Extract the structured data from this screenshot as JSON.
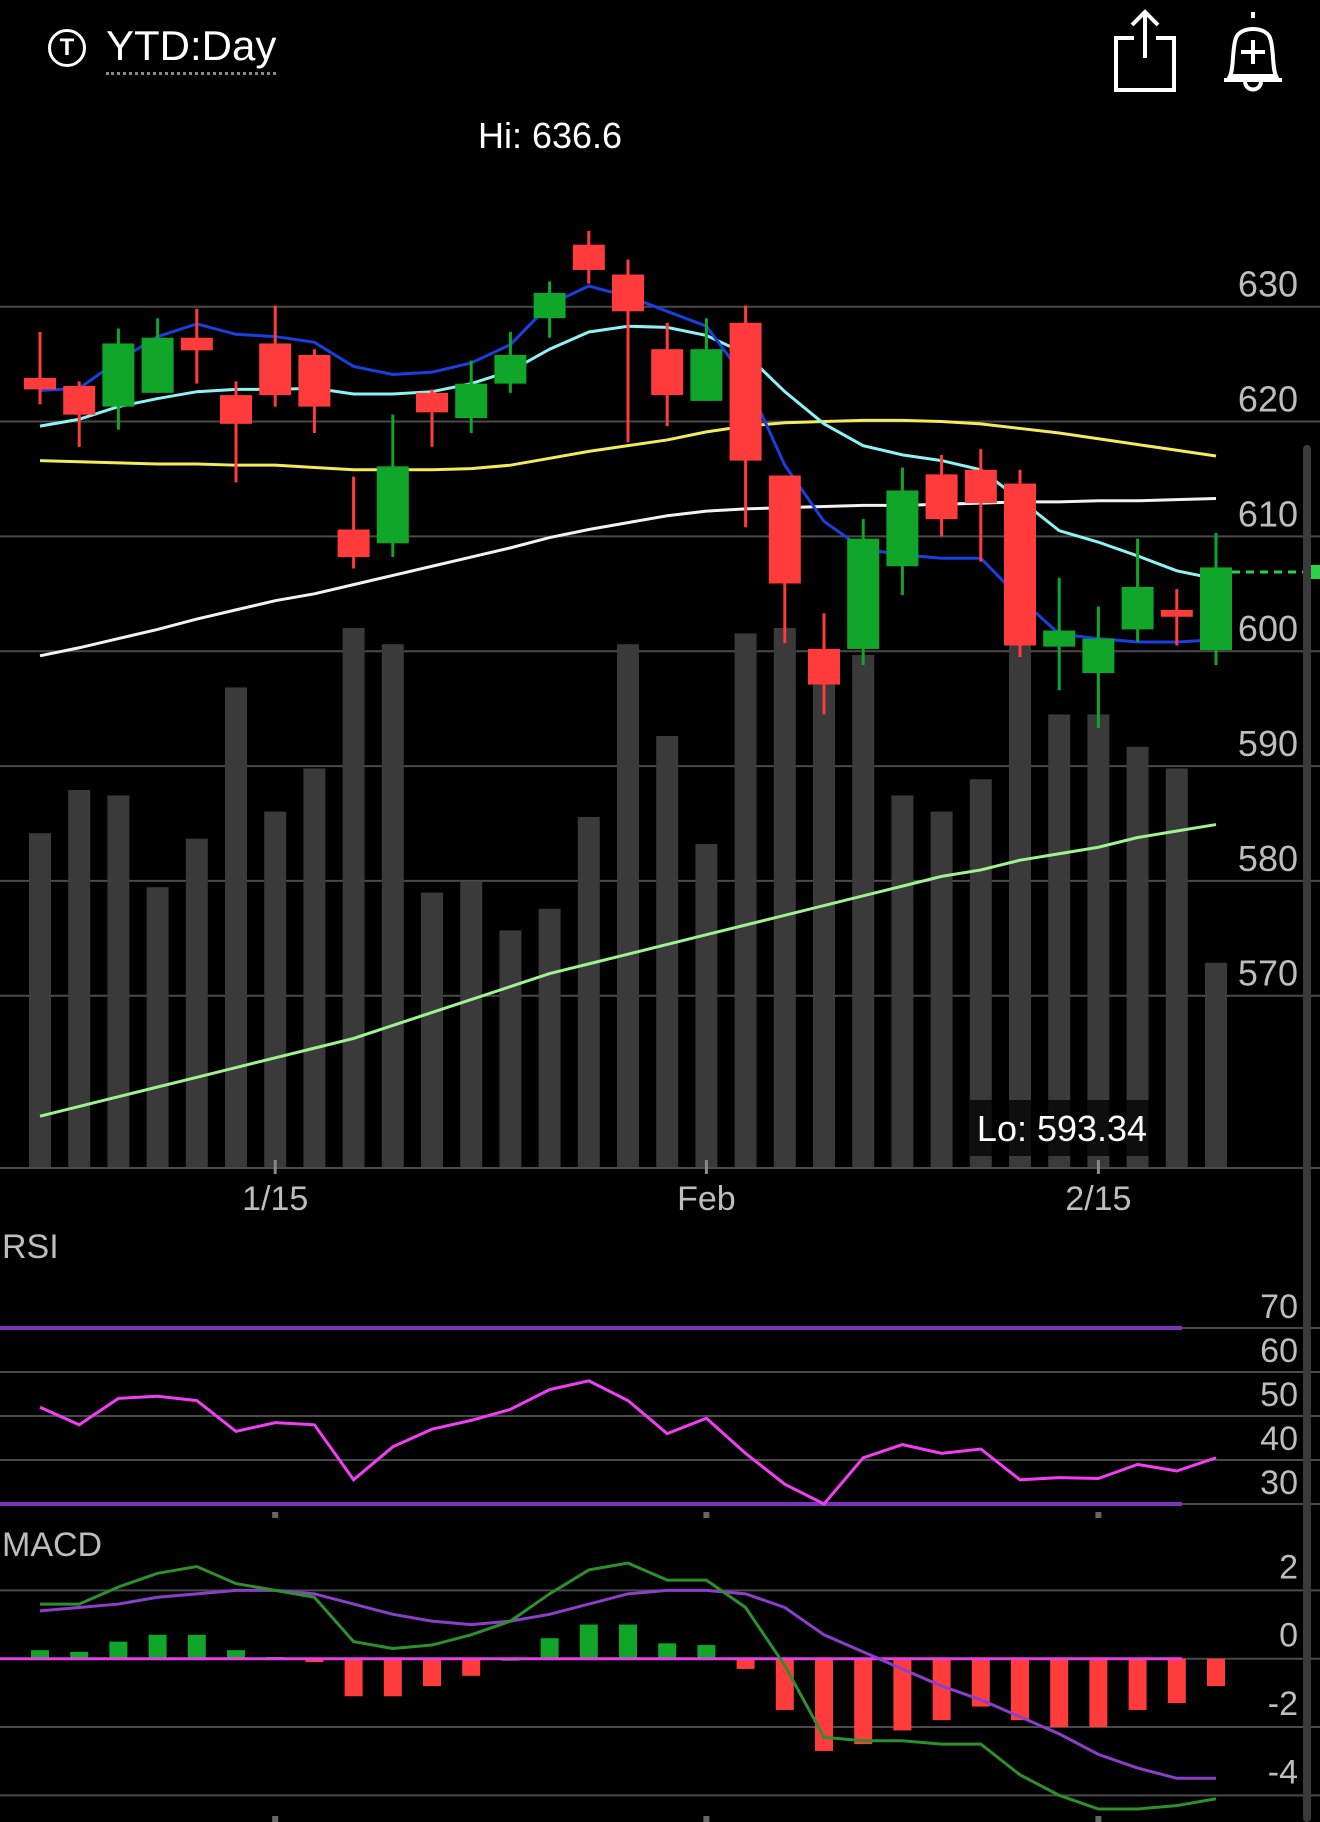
{
  "header": {
    "title": "YTD:Day",
    "ticker_icon": "T"
  },
  "icons": {
    "share": "share-icon",
    "alert": "add-alert-icon"
  },
  "chart_data": [
    {
      "type": "candlestick",
      "ylim": [
        555,
        648
      ],
      "yticks": [
        630,
        620,
        610,
        600,
        590,
        580,
        570
      ],
      "xticks": [
        {
          "label": "1/15",
          "index": 6
        },
        {
          "label": "Feb",
          "index": 17
        },
        {
          "label": "2/15",
          "index": 27
        }
      ],
      "hi_label": "Hi: 636.6",
      "lo_label": "Lo: 593.34",
      "last_price": 606.9,
      "candles": [
        {
          "o": 623.8,
          "h": 627.8,
          "l": 621.5,
          "c": 622.8
        },
        {
          "o": 623.1,
          "h": 623.5,
          "l": 617.8,
          "c": 620.6
        },
        {
          "o": 621.3,
          "h": 628.1,
          "l": 619.3,
          "c": 626.8
        },
        {
          "o": 622.5,
          "h": 629.0,
          "l": 622.5,
          "c": 627.3
        },
        {
          "o": 627.3,
          "h": 629.8,
          "l": 623.3,
          "c": 626.2
        },
        {
          "o": 622.3,
          "h": 623.5,
          "l": 614.7,
          "c": 619.8
        },
        {
          "o": 626.8,
          "h": 630.1,
          "l": 621.3,
          "c": 622.3
        },
        {
          "o": 625.8,
          "h": 626.3,
          "l": 619.0,
          "c": 621.3
        },
        {
          "o": 610.6,
          "h": 615.2,
          "l": 607.2,
          "c": 608.2
        },
        {
          "o": 609.4,
          "h": 620.6,
          "l": 608.2,
          "c": 616.1
        },
        {
          "o": 622.5,
          "h": 622.8,
          "l": 617.8,
          "c": 620.8
        },
        {
          "o": 620.3,
          "h": 625.3,
          "l": 619.0,
          "c": 623.3
        },
        {
          "o": 623.3,
          "h": 627.8,
          "l": 622.5,
          "c": 625.8
        },
        {
          "o": 629.0,
          "h": 632.2,
          "l": 627.3,
          "c": 631.2
        },
        {
          "o": 635.4,
          "h": 636.6,
          "l": 632.0,
          "c": 633.2
        },
        {
          "o": 632.8,
          "h": 634.1,
          "l": 618.2,
          "c": 629.6
        },
        {
          "o": 626.3,
          "h": 628.6,
          "l": 619.6,
          "c": 622.3
        },
        {
          "o": 621.8,
          "h": 629.0,
          "l": 621.8,
          "c": 626.3
        },
        {
          "o": 628.6,
          "h": 630.1,
          "l": 610.8,
          "c": 616.6
        },
        {
          "o": 615.3,
          "h": 615.3,
          "l": 600.7,
          "c": 605.9
        },
        {
          "o": 600.2,
          "h": 603.3,
          "l": 594.5,
          "c": 597.1
        },
        {
          "o": 600.2,
          "h": 611.5,
          "l": 598.8,
          "c": 609.8
        },
        {
          "o": 607.4,
          "h": 616.0,
          "l": 604.9,
          "c": 614.0
        },
        {
          "o": 615.4,
          "h": 617.1,
          "l": 610.0,
          "c": 611.5
        },
        {
          "o": 615.8,
          "h": 617.6,
          "l": 607.8,
          "c": 612.9
        },
        {
          "o": 614.6,
          "h": 615.8,
          "l": 599.5,
          "c": 600.5
        },
        {
          "o": 600.4,
          "h": 606.4,
          "l": 596.6,
          "c": 601.8
        },
        {
          "o": 598.1,
          "h": 603.9,
          "l": 593.3,
          "c": 601.1
        },
        {
          "o": 601.9,
          "h": 609.8,
          "l": 600.8,
          "c": 605.6
        },
        {
          "o": 603.6,
          "h": 605.4,
          "l": 600.5,
          "c": 603.0
        },
        {
          "o": 600.1,
          "h": 610.3,
          "l": 598.8,
          "c": 607.3
        }
      ],
      "volume": [
        0.62,
        0.7,
        0.69,
        0.52,
        0.61,
        0.89,
        0.66,
        0.74,
        1.0,
        0.97,
        0.51,
        0.53,
        0.44,
        0.48,
        0.65,
        0.97,
        0.8,
        0.6,
        0.99,
        1.0,
        0.91,
        0.95,
        0.69,
        0.66,
        0.72,
        0.99,
        0.84,
        0.84,
        0.78,
        0.74,
        0.38
      ],
      "ma_fast": [
        622.7,
        622.9,
        625.3,
        627.4,
        628.5,
        627.6,
        627.4,
        626.9,
        624.8,
        624.1,
        624.3,
        625.1,
        626.7,
        630.2,
        631.8,
        630.9,
        629.6,
        628.3,
        623.7,
        616.2,
        611.3,
        608.9,
        608.4,
        608.1,
        608.1,
        604.6,
        601.5,
        601.1,
        600.8,
        600.8,
        601.0
      ],
      "ma_mid": [
        619.6,
        620.2,
        621.3,
        622.0,
        622.6,
        622.8,
        622.8,
        622.9,
        622.4,
        622.4,
        622.6,
        623.3,
        624.4,
        626.3,
        627.8,
        628.3,
        628.2,
        627.5,
        625.9,
        622.6,
        619.8,
        617.9,
        617.1,
        616.6,
        615.8,
        613.2,
        610.5,
        609.5,
        608.3,
        607.0,
        606.3
      ],
      "ma_slow": [
        616.6,
        616.5,
        616.4,
        616.3,
        616.3,
        616.2,
        616.2,
        616.0,
        615.8,
        615.8,
        615.8,
        615.9,
        616.2,
        616.8,
        617.4,
        617.9,
        618.4,
        619.1,
        619.6,
        619.9,
        620.0,
        620.1,
        620.1,
        620.0,
        619.8,
        619.4,
        619.0,
        618.5,
        618.0,
        617.5,
        617.0
      ],
      "ma_200": [
        599.6,
        600.3,
        601.1,
        601.9,
        602.8,
        603.6,
        604.4,
        605.0,
        605.8,
        606.6,
        607.4,
        608.2,
        609.0,
        609.9,
        610.6,
        611.2,
        611.8,
        612.2,
        612.4,
        612.5,
        612.6,
        612.7,
        612.7,
        612.8,
        612.9,
        613.0,
        613.0,
        613.1,
        613.1,
        613.2,
        613.3
      ],
      "volume_ma": [
        0.16,
        0.19,
        0.22,
        0.25,
        0.28,
        0.31,
        0.34,
        0.37,
        0.4,
        0.44,
        0.48,
        0.52,
        0.56,
        0.6,
        0.63,
        0.66,
        0.69,
        0.72,
        0.75,
        0.78,
        0.81,
        0.84,
        0.87,
        0.9,
        0.92,
        0.95,
        0.97,
        0.99,
        1.02,
        1.04,
        1.06
      ]
    },
    {
      "type": "line",
      "title": "RSI",
      "yticks": [
        70,
        60,
        50,
        40,
        30
      ],
      "ylim": [
        25,
        75
      ],
      "overbought": 70,
      "oversold": 30,
      "values": [
        52,
        48,
        54,
        54.5,
        53.5,
        46.5,
        48.5,
        48,
        35.5,
        43,
        47,
        49,
        51.5,
        56,
        58,
        53.5,
        46,
        49.5,
        41.5,
        34.5,
        30,
        40.5,
        43.5,
        41.5,
        42.5,
        35.5,
        36,
        35.8,
        39,
        37.5,
        40.5
      ]
    },
    {
      "type": "line",
      "title": "MACD",
      "yticks": [
        2,
        0,
        -2,
        -4
      ],
      "ylim": [
        -5.6,
        3.3
      ],
      "macd": [
        1.6,
        1.6,
        2.1,
        2.5,
        2.7,
        2.2,
        2.0,
        1.8,
        0.5,
        0.3,
        0.4,
        0.7,
        1.1,
        1.9,
        2.6,
        2.8,
        2.3,
        2.3,
        1.5,
        -0.2,
        -2.3,
        -2.4,
        -2.4,
        -2.5,
        -2.5,
        -3.4,
        -4.0,
        -4.4,
        -4.4,
        -4.3,
        -4.1
      ],
      "signal": [
        1.4,
        1.5,
        1.6,
        1.8,
        1.9,
        2.0,
        2.0,
        1.9,
        1.6,
        1.3,
        1.1,
        1.0,
        1.1,
        1.3,
        1.6,
        1.9,
        2.0,
        2.0,
        1.9,
        1.5,
        0.7,
        0.2,
        -0.3,
        -0.8,
        -1.2,
        -1.7,
        -2.2,
        -2.8,
        -3.2,
        -3.5,
        -3.5
      ],
      "histogram": [
        0.25,
        0.2,
        0.5,
        0.7,
        0.7,
        0.25,
        0.05,
        -0.1,
        -1.1,
        -1.1,
        -0.8,
        -0.5,
        0.0,
        0.6,
        1.0,
        1.0,
        0.45,
        0.4,
        -0.3,
        -1.5,
        -2.7,
        -2.5,
        -2.1,
        -1.8,
        -1.4,
        -1.8,
        -2.0,
        -2.0,
        -1.5,
        -1.3,
        -0.8
      ]
    }
  ],
  "colors": {
    "up": "#0fa629",
    "down": "#ff3b3b",
    "volume": "#3a3a3a",
    "grid": "#4a4a4a",
    "ma_fast": "#1a3fe0",
    "ma_mid": "#8ef2f2",
    "ma_slow": "#f2ec5a",
    "ma_200": "#f2f2f2",
    "volume_ma": "#9ef28f",
    "rsi_line": "#f23ef2",
    "rsi_band": "#7a33b8",
    "macd_line": "#2e8f2e",
    "signal_line": "#8a3fc8",
    "zero_line": "#e540e5",
    "last_price": "#2ecf4a"
  }
}
